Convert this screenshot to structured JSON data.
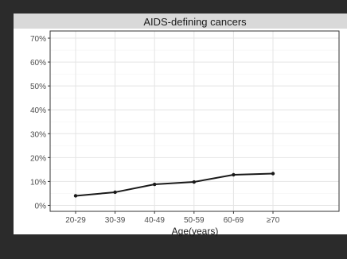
{
  "chart_data": {
    "type": "line",
    "title": "AIDS-defining cancers",
    "xlabel": "Age(years)",
    "ylabel": "",
    "categories": [
      "20-29",
      "30-39",
      "40-49",
      "50-59",
      "60-69",
      "≥70"
    ],
    "series": [
      {
        "values": [
          0.04,
          0.055,
          0.088,
          0.098,
          0.128,
          0.133
        ]
      }
    ],
    "ylim": [
      -0.025,
      0.73
    ],
    "yticks": [
      0,
      0.1,
      0.2,
      0.3,
      0.4,
      0.5,
      0.6,
      0.7
    ],
    "ytick_labels": [
      "0%",
      "10%",
      "20%",
      "30%",
      "40%",
      "50%",
      "60%",
      "70%"
    ],
    "grid": true,
    "legend": "none"
  },
  "colors": {
    "outer_background": "#2b2b2b",
    "panel_background": "#ffffff",
    "title_strip": "#d9d9d9",
    "line": "#1a1a1a",
    "grid": "#ebebeb"
  }
}
